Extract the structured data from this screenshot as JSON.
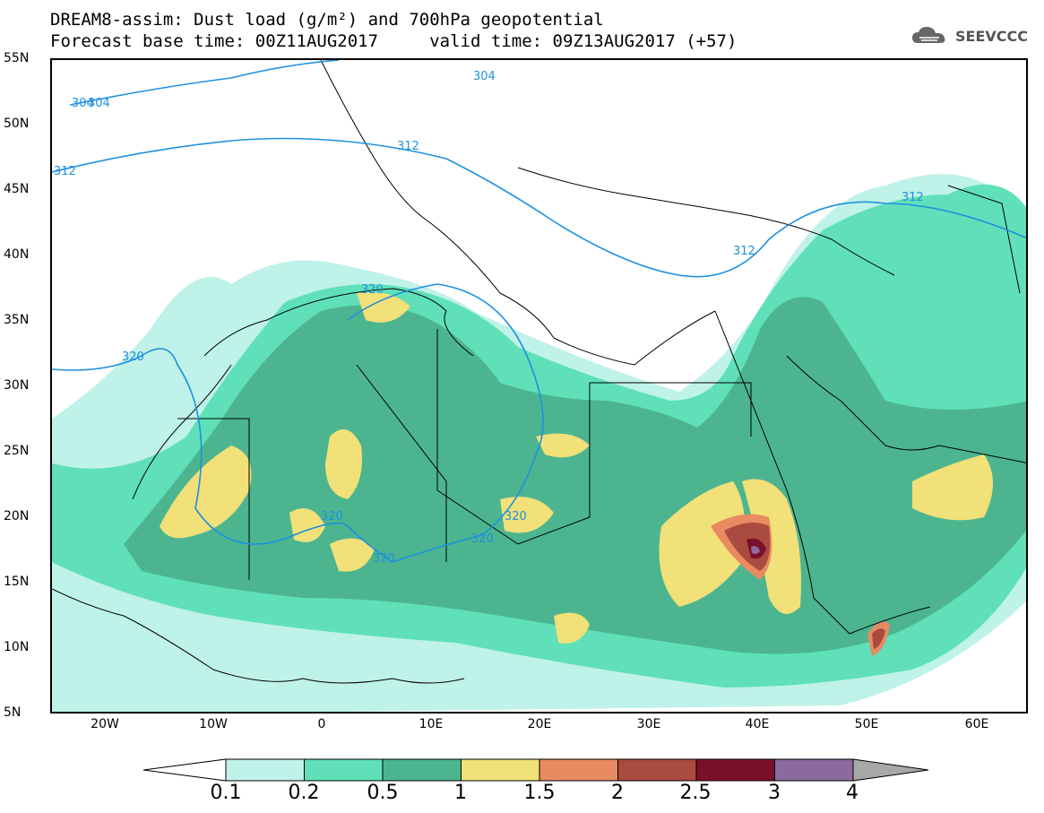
{
  "title": {
    "line1": "DREAM8-assim: Dust load (g/m²) and 700hPa geopotential",
    "line2": "Forecast base time: 00Z11AUG2017     valid time: 09Z13AUG2017 (+57)"
  },
  "brand": "SEEVCCC",
  "lat_labels": [
    "55N",
    "50N",
    "45N",
    "40N",
    "35N",
    "30N",
    "25N",
    "20N",
    "15N",
    "10N",
    "5N"
  ],
  "lon_labels": [
    "20W",
    "10W",
    "0",
    "10E",
    "20E",
    "30E",
    "40E",
    "50E",
    "60E"
  ],
  "contour_labels": [
    "304",
    "304",
    "304",
    "312",
    "312",
    "312",
    "312",
    "320",
    "320",
    "320",
    "320",
    "320",
    "320"
  ],
  "colorbar": {
    "levels": [
      "0.1",
      "0.2",
      "0.5",
      "1",
      "1.5",
      "2",
      "2.5",
      "3",
      "4"
    ],
    "colors": [
      "#bff2e8",
      "#5fe0b8",
      "#4cb58f",
      "#f2e079",
      "#e88a62",
      "#a94b3e",
      "#7a0f2a",
      "#8b6aa0"
    ],
    "under_color": "#ffffff",
    "over_color": "#a8a8a8"
  },
  "map_colors": {
    "land_border": "#000000",
    "contour": "#1e90e0"
  }
}
